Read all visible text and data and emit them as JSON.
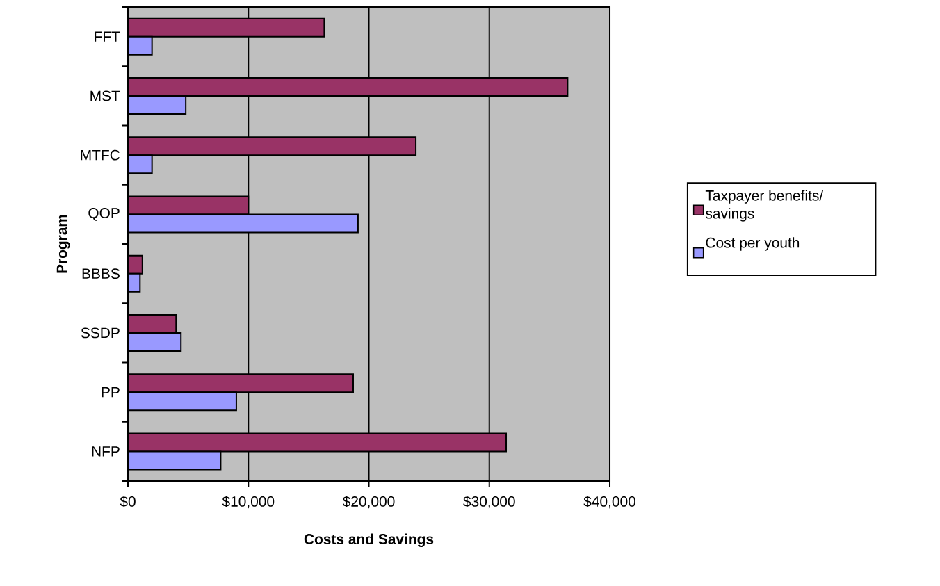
{
  "chart_data": {
    "type": "bar",
    "orientation": "horizontal",
    "xlabel": "Costs and Savings",
    "ylabel": "Program",
    "categories": [
      "FFT",
      "MST",
      "MTFC",
      "QOP",
      "BBBS",
      "SSDP",
      "PP",
      "NFP"
    ],
    "series": [
      {
        "name": "Taxpayer benefits/ savings",
        "color": "#993366",
        "values": [
          16300,
          36500,
          23900,
          10000,
          1200,
          4000,
          18700,
          31400
        ]
      },
      {
        "name": "Cost per youth",
        "color": "#9999ff",
        "values": [
          2000,
          4800,
          2000,
          19100,
          1000,
          4400,
          9000,
          7700
        ]
      }
    ],
    "xlim": [
      0,
      40000
    ],
    "xticks": [
      {
        "value": 0,
        "label": "$0"
      },
      {
        "value": 10000,
        "label": "$10,000"
      },
      {
        "value": 20000,
        "label": "$20,000"
      },
      {
        "value": 30000,
        "label": "$30,000"
      },
      {
        "value": 40000,
        "label": "$40,000"
      }
    ],
    "grid": "x",
    "legend": "right"
  }
}
